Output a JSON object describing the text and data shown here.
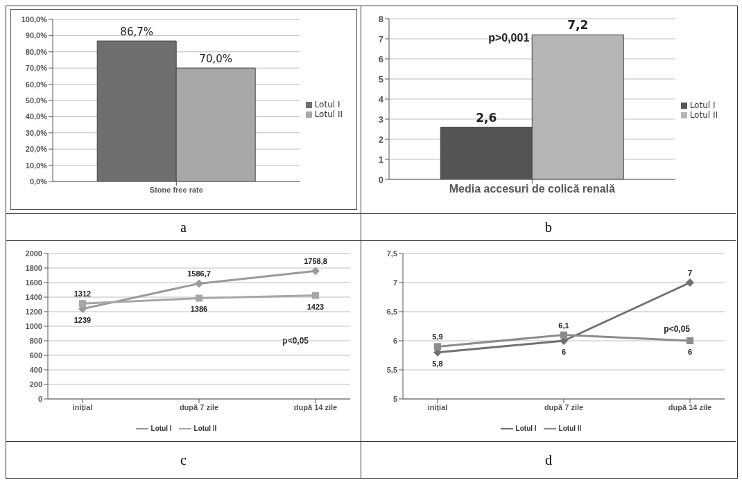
{
  "chart_data": [
    {
      "type": "bar",
      "categories": [
        "Stone free rate"
      ],
      "series": [
        {
          "name": "Lotul I",
          "color": "#6f6f6f",
          "values": [
            86.7
          ],
          "value_labels": [
            "86,7%"
          ]
        },
        {
          "name": "Lotul II",
          "color": "#a8a8a8",
          "values": [
            70.0
          ],
          "value_labels": [
            "70,0%"
          ]
        }
      ],
      "ylim": [
        0,
        100
      ],
      "yticks": [
        {
          "value": 0,
          "label": "0,0%"
        },
        {
          "value": 10,
          "label": "10,0%"
        },
        {
          "value": 20,
          "label": "20,0%"
        },
        {
          "value": 30,
          "label": "30,0%"
        },
        {
          "value": 40,
          "label": "40,0%"
        },
        {
          "value": 50,
          "label": "50,0%"
        },
        {
          "value": 60,
          "label": "60,0%"
        },
        {
          "value": 70,
          "label": "70,0%"
        },
        {
          "value": 80,
          "label": "80,0%"
        },
        {
          "value": 90,
          "label": "90,0%"
        },
        {
          "value": 100,
          "label": "100,0%"
        }
      ],
      "grid": "y",
      "legend": "right",
      "annotations": [
        "a"
      ]
    },
    {
      "type": "bar",
      "categories": [
        "Media accesuri de colică renală"
      ],
      "series": [
        {
          "name": "Lotul I",
          "color": "#555555",
          "values": [
            2.6
          ],
          "value_labels": [
            "2,6"
          ]
        },
        {
          "name": "Lotul II",
          "color": "#b5b5b5",
          "values": [
            7.2
          ],
          "value_labels": [
            "7,2"
          ]
        }
      ],
      "ylim": [
        0,
        8
      ],
      "yticks": [
        0,
        1,
        2,
        3,
        4,
        5,
        6,
        7,
        8
      ],
      "grid": "y",
      "legend": "right",
      "annotations": [
        {
          "text": "p>0,001",
          "x": "Media accesuri de colică renală",
          "y": 7.2
        },
        "b"
      ]
    },
    {
      "type": "line",
      "categories": [
        "inițial",
        "după 7 zile",
        "după 14 zile"
      ],
      "series": [
        {
          "name": "Lotul I",
          "color": "#9a9a9a",
          "marker": "diamond",
          "values": [
            1239,
            1586.7,
            1758.8
          ],
          "value_labels": [
            "1239",
            "1586,7",
            "1758,8"
          ]
        },
        {
          "name": "Lotul II",
          "color": "#a6a6a6",
          "marker": "square",
          "values": [
            1312,
            1386,
            1423
          ],
          "value_labels": [
            "1312",
            "1386",
            "1423"
          ]
        }
      ],
      "ylim": [
        0,
        2000
      ],
      "yticks": [
        0,
        200,
        400,
        600,
        800,
        1000,
        1200,
        1400,
        1600,
        1800,
        2000
      ],
      "grid": "y",
      "legend": "bottom",
      "annotations": [
        "p<0,05",
        "c"
      ]
    },
    {
      "type": "line",
      "categories": [
        "inițial",
        "după 7 zile",
        "după 14 zile"
      ],
      "series": [
        {
          "name": "Lotul I",
          "color": "#707070",
          "marker": "diamond",
          "values": [
            5.8,
            6,
            7
          ],
          "value_labels": [
            "5,8",
            "6",
            "7"
          ]
        },
        {
          "name": "Lotul II",
          "color": "#8c8c8c",
          "marker": "square",
          "values": [
            5.9,
            6.1,
            6
          ],
          "value_labels": [
            "5,9",
            "6,1",
            "6"
          ]
        }
      ],
      "ylim": [
        5,
        7.5
      ],
      "yticks": [
        5,
        {
          "value": 5.5,
          "label": "5,5"
        },
        6,
        {
          "value": 6.5,
          "label": "6,5"
        },
        7,
        {
          "value": 7.5,
          "label": "7,5"
        }
      ],
      "grid": "y",
      "legend": "bottom",
      "annotations": [
        "p<0,05",
        "d"
      ]
    }
  ]
}
